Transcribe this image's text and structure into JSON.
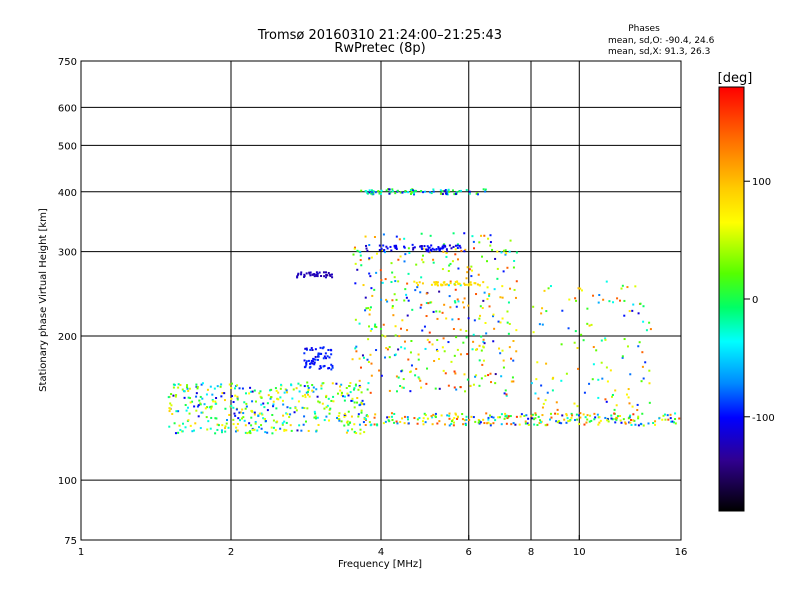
{
  "title": "Tromsø 20160310 21:24:00–21:25:43",
  "subtitle": "RwPretec (8p)",
  "stats": {
    "header": "Phases",
    "line_o": "mean, sd,O: -90.4, 24.6",
    "line_x": "mean, sd,X:  91.3, 26.3"
  },
  "colorbar": {
    "label": "[deg]",
    "ticks": [
      "100",
      "0",
      "-100"
    ],
    "tick_values": [
      100,
      0,
      -100
    ],
    "range": [
      -180,
      180
    ]
  },
  "chart_data": {
    "type": "scatter",
    "xlabel": "Frequency [MHz]",
    "ylabel": "Stationary phase Virtual Height [km]",
    "xscale": "log",
    "yscale": "log",
    "xlim": [
      1,
      16
    ],
    "ylim": [
      75,
      750
    ],
    "xticks": [
      1,
      2,
      4,
      6,
      8,
      10,
      16
    ],
    "xtick_labels": [
      "1",
      "2",
      "4",
      "6",
      "8",
      "10",
      "16"
    ],
    "yticks": [
      75,
      100,
      200,
      300,
      400,
      500,
      600,
      750
    ],
    "ytick_labels": [
      "75",
      "100",
      "200",
      "300",
      "400",
      "500",
      "600",
      "750"
    ],
    "grid": true,
    "color_encoding": "phase (deg), rainbow colormap",
    "clusters": [
      {
        "f": [
          1.5,
          3.8
        ],
        "h": [
          125,
          160
        ],
        "phase": [
          -130,
          110
        ]
      },
      {
        "f": [
          3.7,
          16
        ],
        "h": [
          130,
          138
        ],
        "phase": [
          -130,
          160
        ]
      },
      {
        "f": [
          2.8,
          3.2
        ],
        "h": [
          170,
          190
        ],
        "phase": [
          -120,
          -80
        ]
      },
      {
        "f": [
          3.5,
          7.5
        ],
        "h": [
          150,
          330
        ],
        "phase": [
          -140,
          160
        ]
      },
      {
        "f": [
          2.7,
          3.2
        ],
        "h": [
          265,
          272
        ],
        "phase": [
          -135,
          -120
        ]
      },
      {
        "f": [
          3.7,
          5.9
        ],
        "h": [
          300,
          310
        ],
        "phase": [
          -130,
          -90
        ]
      },
      {
        "f": [
          3.6,
          6.5
        ],
        "h": [
          395,
          405
        ],
        "phase": [
          -130,
          40
        ]
      },
      {
        "f": [
          4.5,
          6.5
        ],
        "h": [
          255,
          260
        ],
        "phase": [
          80,
          110
        ]
      },
      {
        "f": [
          8,
          14
        ],
        "h": [
          140,
          260
        ],
        "phase": [
          -120,
          150
        ]
      }
    ]
  }
}
